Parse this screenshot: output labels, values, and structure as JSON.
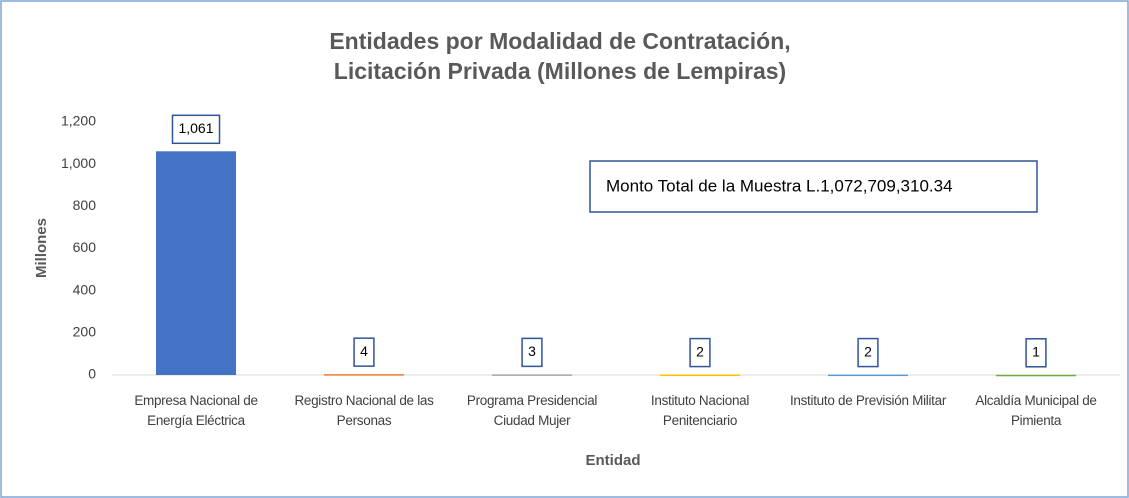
{
  "chart_data": {
    "type": "bar",
    "title": "Entidades por Modalidad de Contratación,\nLicitación Privada  (Millones de Lempiras)",
    "x_label": "Entidad",
    "y_label": "Millones",
    "categories": [
      "Empresa Nacional de Energía Eléctrica",
      "Registro Nacional de las Personas",
      "Programa Presidencial Ciudad Mujer",
      "Instituto Nacional Penitenciario",
      "Instituto de Previsión Militar",
      "Alcaldía Municipal de Pimienta"
    ],
    "values": [
      1061,
      4,
      3,
      2,
      2,
      1
    ],
    "value_labels": [
      "1,061",
      "4",
      "3",
      "2",
      "2",
      "1"
    ],
    "colors": [
      "#4472c4",
      "#ed7d31",
      "#a5a5a5",
      "#ffc000",
      "#5b9bd5",
      "#70ad47"
    ],
    "ylim": [
      0,
      1200
    ],
    "yticks": [
      0,
      200,
      400,
      600,
      800,
      {
        "value": 1000,
        "label": "1,000"
      },
      {
        "value": 1200,
        "label": "1,200"
      }
    ],
    "annotation": "Monto Total de la Muestra L.1,072,709,310.34"
  }
}
